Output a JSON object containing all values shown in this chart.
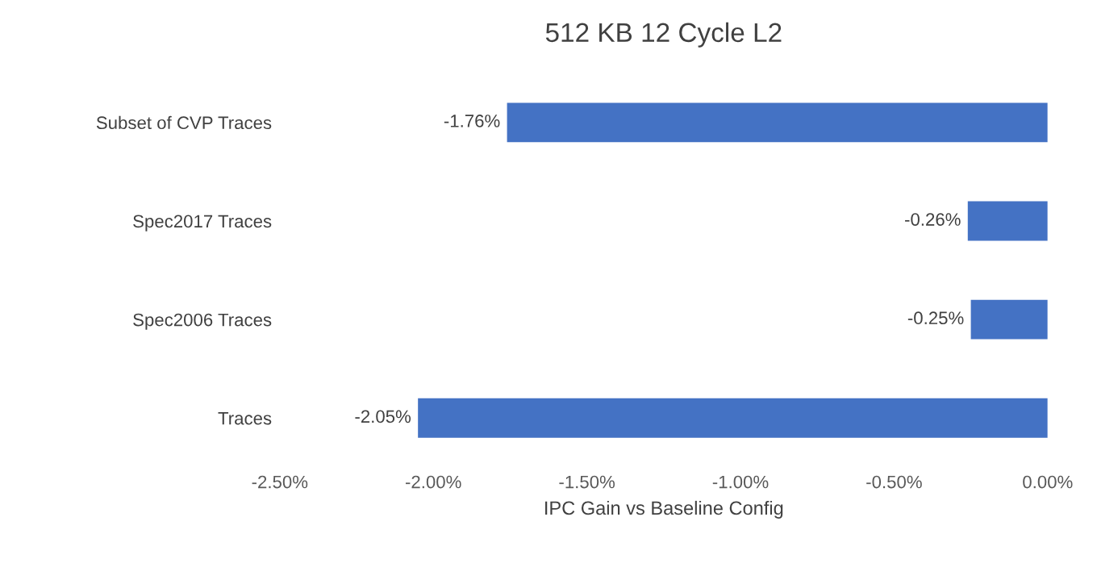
{
  "chart_data": {
    "type": "bar",
    "orientation": "horizontal",
    "title": "512 KB 12 Cycle L2",
    "xlabel": "IPC Gain vs Baseline Config",
    "categories": [
      "Subset of CVP Traces",
      "Spec2017 Traces",
      "Spec2006 Traces",
      "Traces"
    ],
    "values": [
      -1.76,
      -0.26,
      -0.25,
      -2.05
    ],
    "value_labels": [
      "-1.76%",
      "-0.26%",
      "-0.25%",
      "-2.05%"
    ],
    "color": "#4472c4",
    "xlim": [
      -2.5,
      0
    ],
    "xticks": [
      {
        "value": -2.5,
        "label": "-2.50%"
      },
      {
        "value": -2.0,
        "label": "-2.00%"
      },
      {
        "value": -1.5,
        "label": "-1.50%"
      },
      {
        "value": -1.0,
        "label": "-1.00%"
      },
      {
        "value": -0.5,
        "label": "-0.50%"
      },
      {
        "value": 0,
        "label": "0.00%"
      }
    ],
    "grid": false,
    "legend": false
  }
}
